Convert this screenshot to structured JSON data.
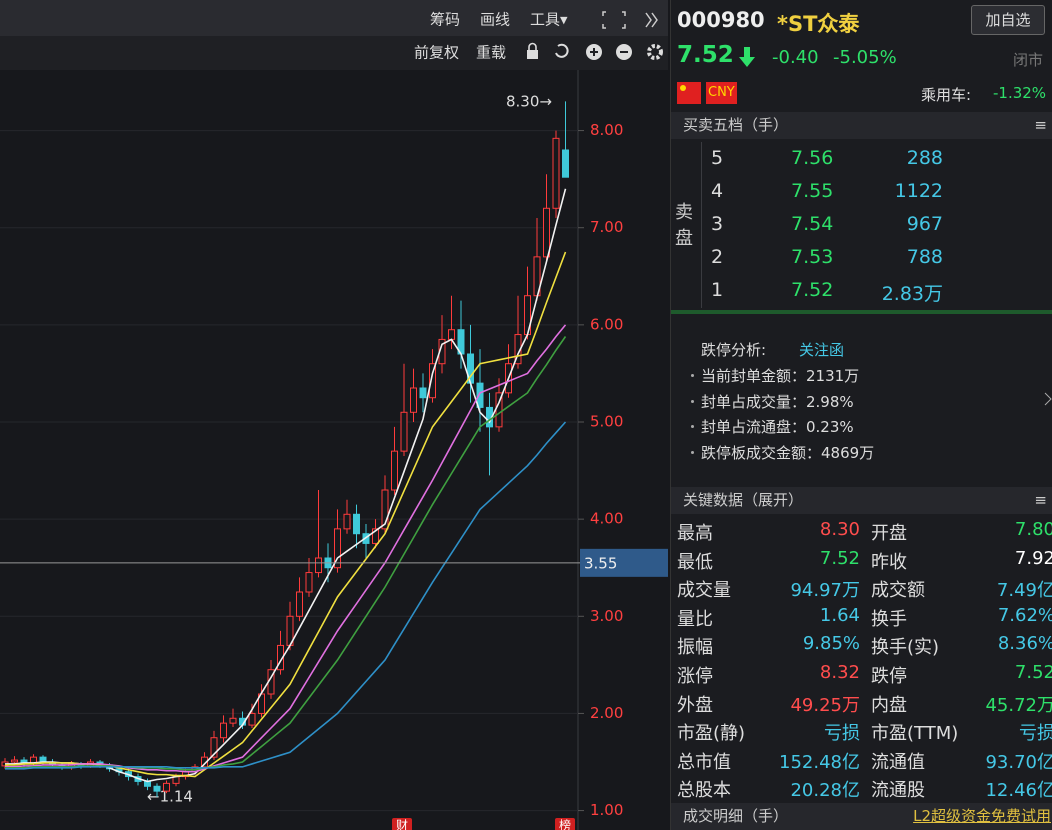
{
  "toolbar": {
    "items": [
      "筹码",
      "画线",
      "工具▾"
    ],
    "sub": [
      "前复权",
      "重载"
    ]
  },
  "quote": {
    "code": "000980",
    "name": "*ST众泰",
    "watch_button": "加自选",
    "price": "7.52",
    "change": "-0.40",
    "change_pct": "-5.05%",
    "status": "闭市",
    "currency": "CNY",
    "sector": "乘用车:",
    "sector_change": "-1.32%"
  },
  "order_book": {
    "title": "买卖五档（手）",
    "side_label": "卖盘",
    "rows": [
      [
        "5",
        "7.56",
        "288"
      ],
      [
        "4",
        "7.55",
        "1122"
      ],
      [
        "3",
        "7.54",
        "967"
      ],
      [
        "2",
        "7.53",
        "788"
      ],
      [
        "1",
        "7.52",
        "2.83万"
      ]
    ]
  },
  "limit_analysis": {
    "title": "跌停分析:",
    "tag": "关注函",
    "items": [
      "当前封单金额：2131万",
      "封单占成交量：2.98%",
      "封单占流通盘：0.23%",
      "跌停板成交金额：4869万"
    ]
  },
  "key_data": {
    "title": "关键数据（展开）",
    "rows": [
      [
        {
          "label": "最高",
          "value": "8.30",
          "color": "#ff4d4d"
        },
        {
          "label": "开盘",
          "value": "7.80",
          "color": "#2ee06a"
        }
      ],
      [
        {
          "label": "最低",
          "value": "7.52",
          "color": "#2ee06a"
        },
        {
          "label": "昨收",
          "value": "7.92",
          "color": "#ffffff"
        }
      ],
      [
        {
          "label": "成交量",
          "value": "94.97万",
          "color": "#45c8e6"
        },
        {
          "label": "成交额",
          "value": "7.49亿",
          "color": "#45c8e6"
        }
      ],
      [
        {
          "label": "量比",
          "value": "1.64",
          "color": "#45c8e6"
        },
        {
          "label": "换手",
          "value": "7.62%",
          "color": "#45c8e6"
        }
      ],
      [
        {
          "label": "振幅",
          "value": "9.85%",
          "color": "#45c8e6"
        },
        {
          "label": "换手(实)",
          "value": "8.36%",
          "color": "#45c8e6"
        }
      ],
      [
        {
          "label": "涨停",
          "value": "8.32",
          "color": "#ff4d4d"
        },
        {
          "label": "跌停",
          "value": "7.52",
          "color": "#2ee06a"
        }
      ],
      [
        {
          "label": "外盘",
          "value": "49.25万",
          "color": "#ff4d4d"
        },
        {
          "label": "内盘",
          "value": "45.72万",
          "color": "#2ee06a"
        }
      ],
      [
        {
          "label": "市盈(静)",
          "value": "亏损",
          "color": "#45c8e6"
        },
        {
          "label": "市盈(TTM)",
          "value": "亏损",
          "color": "#45c8e6"
        }
      ],
      [
        {
          "label": "总市值",
          "value": "152.48亿",
          "color": "#45c8e6"
        },
        {
          "label": "流通值",
          "value": "93.70亿",
          "color": "#45c8e6"
        }
      ],
      [
        {
          "label": "总股本",
          "value": "20.28亿",
          "color": "#45c8e6"
        },
        {
          "label": "流通股",
          "value": "12.46亿",
          "color": "#45c8e6"
        }
      ]
    ]
  },
  "footer": {
    "title": "成交明细（手）",
    "promo": "L2超级资金免费试用"
  },
  "chart_data": {
    "type": "candlestick",
    "up_color": "#ff3b3b",
    "down_color": "#3fc9d9",
    "grid": true,
    "ylim": [
      0.8,
      8.5
    ],
    "yticks": [
      {
        "value": 1,
        "label": "1.00"
      },
      {
        "value": 2,
        "label": "2.00"
      },
      {
        "value": 3,
        "label": "3.00"
      },
      {
        "value": 4,
        "label": "4.00"
      },
      {
        "value": 5,
        "label": "5.00"
      },
      {
        "value": 6,
        "label": "6.00"
      },
      {
        "value": 7,
        "label": "7.00"
      },
      {
        "value": 8,
        "label": "8.00"
      }
    ],
    "crosshair": 3.55,
    "annotations": [
      "8.30→",
      "←1.14"
    ],
    "event_markers": [
      "财",
      "榜"
    ],
    "open": [
      1.46,
      1.5,
      1.52,
      1.48,
      1.55,
      1.5,
      1.47,
      1.45,
      1.48,
      1.46,
      1.5,
      1.47,
      1.43,
      1.4,
      1.35,
      1.3,
      1.25,
      1.2,
      1.28,
      1.35,
      1.4,
      1.45,
      1.55,
      1.75,
      1.9,
      1.95,
      1.88,
      2.0,
      2.2,
      2.45,
      2.7,
      3.0,
      3.25,
      3.45,
      3.6,
      3.5,
      3.9,
      4.05,
      3.85,
      3.75,
      3.9,
      4.3,
      4.7,
      5.1,
      5.35,
      5.25,
      5.6,
      5.85,
      5.95,
      5.7,
      5.4,
      5.15,
      4.95,
      5.3,
      5.6,
      5.9,
      6.3,
      6.7,
      7.2,
      7.8
    ],
    "high": [
      1.54,
      1.56,
      1.55,
      1.58,
      1.57,
      1.53,
      1.5,
      1.51,
      1.5,
      1.53,
      1.52,
      1.49,
      1.46,
      1.43,
      1.38,
      1.33,
      1.28,
      1.31,
      1.38,
      1.43,
      1.48,
      1.6,
      1.82,
      1.98,
      2.05,
      2.02,
      2.1,
      2.3,
      2.55,
      2.85,
      3.15,
      3.4,
      3.6,
      4.3,
      3.75,
      4.1,
      4.2,
      4.15,
      3.95,
      4.0,
      4.45,
      4.95,
      5.6,
      5.55,
      5.5,
      5.75,
      6.1,
      6.3,
      6.25,
      6.0,
      5.75,
      5.3,
      5.45,
      5.8,
      6.3,
      6.6,
      7.1,
      7.55,
      8.0,
      8.3
    ],
    "low": [
      1.43,
      1.47,
      1.45,
      1.45,
      1.47,
      1.44,
      1.42,
      1.42,
      1.43,
      1.44,
      1.44,
      1.4,
      1.36,
      1.31,
      1.26,
      1.21,
      1.14,
      1.18,
      1.25,
      1.32,
      1.37,
      1.42,
      1.52,
      1.7,
      1.86,
      1.84,
      1.85,
      1.96,
      2.15,
      2.4,
      2.65,
      2.95,
      3.2,
      3.4,
      3.35,
      3.45,
      3.85,
      3.7,
      3.6,
      3.7,
      3.85,
      4.25,
      4.65,
      5.0,
      5.1,
      5.2,
      5.5,
      5.75,
      5.55,
      5.2,
      4.9,
      4.45,
      4.9,
      5.25,
      5.55,
      5.85,
      6.25,
      6.65,
      7.1,
      7.52
    ],
    "close": [
      1.5,
      1.52,
      1.48,
      1.55,
      1.5,
      1.47,
      1.45,
      1.48,
      1.46,
      1.5,
      1.47,
      1.43,
      1.4,
      1.35,
      1.3,
      1.25,
      1.2,
      1.28,
      1.35,
      1.4,
      1.45,
      1.55,
      1.75,
      1.9,
      1.95,
      1.88,
      2.0,
      2.2,
      2.45,
      2.7,
      3.0,
      3.25,
      3.45,
      3.6,
      3.5,
      3.9,
      4.05,
      3.85,
      3.75,
      3.9,
      4.3,
      4.7,
      5.1,
      5.35,
      5.25,
      5.6,
      5.85,
      5.95,
      5.7,
      5.4,
      5.15,
      4.95,
      5.3,
      5.6,
      5.9,
      6.3,
      6.7,
      7.2,
      7.92,
      7.52
    ],
    "series": [
      {
        "color": "#f2f2f2",
        "values": [
          1.48,
          1.48,
          1.49,
          1.49,
          1.5,
          1.5,
          1.49,
          1.49,
          1.48,
          1.48,
          1.47,
          1.44,
          1.4,
          1.37,
          1.33,
          1.3,
          1.32,
          1.33,
          1.35,
          1.36,
          1.38,
          1.48,
          1.58,
          1.68,
          1.78,
          1.88,
          2.04,
          2.21,
          2.37,
          2.54,
          2.7,
          2.88,
          3.06,
          3.24,
          3.42,
          3.6,
          3.67,
          3.74,
          3.81,
          3.88,
          3.95,
          4.22,
          4.49,
          4.76,
          5.03,
          5.5,
          5.8,
          5.85,
          5.7,
          5.4,
          5.1,
          5.0,
          5.2,
          5.45,
          5.7,
          5.9,
          6.28,
          6.65,
          7.03,
          7.4
        ]
      },
      {
        "color": "#f0e040",
        "values": [
          1.47,
          1.47,
          1.48,
          1.48,
          1.49,
          1.49,
          1.49,
          1.49,
          1.48,
          1.48,
          1.48,
          1.46,
          1.44,
          1.42,
          1.4,
          1.38,
          1.37,
          1.37,
          1.36,
          1.36,
          1.35,
          1.42,
          1.49,
          1.56,
          1.63,
          1.7,
          1.82,
          1.94,
          2.06,
          2.18,
          2.3,
          2.48,
          2.66,
          2.84,
          3.02,
          3.2,
          3.33,
          3.46,
          3.59,
          3.72,
          3.85,
          4.07,
          4.29,
          4.51,
          4.73,
          4.95,
          5.08,
          5.21,
          5.34,
          5.47,
          5.6,
          5.62,
          5.64,
          5.66,
          5.68,
          5.7,
          5.96,
          6.23,
          6.49,
          6.75
        ]
      },
      {
        "color": "#e070e0",
        "values": [
          1.45,
          1.45,
          1.46,
          1.46,
          1.47,
          1.47,
          1.47,
          1.47,
          1.48,
          1.48,
          1.48,
          1.47,
          1.46,
          1.44,
          1.43,
          1.42,
          1.42,
          1.41,
          1.41,
          1.4,
          1.4,
          1.43,
          1.46,
          1.49,
          1.52,
          1.55,
          1.65,
          1.75,
          1.85,
          1.95,
          2.05,
          2.21,
          2.37,
          2.53,
          2.69,
          2.85,
          2.99,
          3.13,
          3.27,
          3.41,
          3.55,
          3.72,
          3.89,
          4.06,
          4.23,
          4.4,
          4.58,
          4.76,
          4.94,
          5.12,
          5.3,
          5.34,
          5.38,
          5.42,
          5.46,
          5.5,
          5.63,
          5.75,
          5.88,
          6.0
        ]
      },
      {
        "color": "#3fa040",
        "values": [
          1.44,
          1.44,
          1.44,
          1.45,
          1.45,
          1.45,
          1.45,
          1.45,
          1.46,
          1.46,
          1.46,
          1.46,
          1.45,
          1.45,
          1.44,
          1.44,
          1.44,
          1.43,
          1.43,
          1.42,
          1.42,
          1.44,
          1.45,
          1.47,
          1.48,
          1.5,
          1.58,
          1.66,
          1.74,
          1.82,
          1.9,
          2.03,
          2.16,
          2.29,
          2.42,
          2.55,
          2.7,
          2.85,
          3.0,
          3.15,
          3.3,
          3.47,
          3.64,
          3.81,
          3.98,
          4.15,
          4.31,
          4.47,
          4.63,
          4.79,
          4.95,
          5.02,
          5.09,
          5.16,
          5.23,
          5.3,
          5.45,
          5.59,
          5.74,
          5.88
        ]
      },
      {
        "color": "#2e90c8",
        "values": [
          1.43,
          1.43,
          1.43,
          1.44,
          1.44,
          1.44,
          1.44,
          1.44,
          1.45,
          1.45,
          1.45,
          1.45,
          1.45,
          1.45,
          1.45,
          1.45,
          1.45,
          1.45,
          1.44,
          1.44,
          1.44,
          1.44,
          1.44,
          1.45,
          1.45,
          1.45,
          1.48,
          1.51,
          1.54,
          1.57,
          1.6,
          1.68,
          1.76,
          1.84,
          1.92,
          2.0,
          2.11,
          2.22,
          2.33,
          2.44,
          2.55,
          2.71,
          2.87,
          3.03,
          3.19,
          3.35,
          3.5,
          3.65,
          3.8,
          3.95,
          4.1,
          4.19,
          4.28,
          4.37,
          4.46,
          4.55,
          4.66,
          4.78,
          4.89,
          5.0
        ]
      }
    ]
  }
}
